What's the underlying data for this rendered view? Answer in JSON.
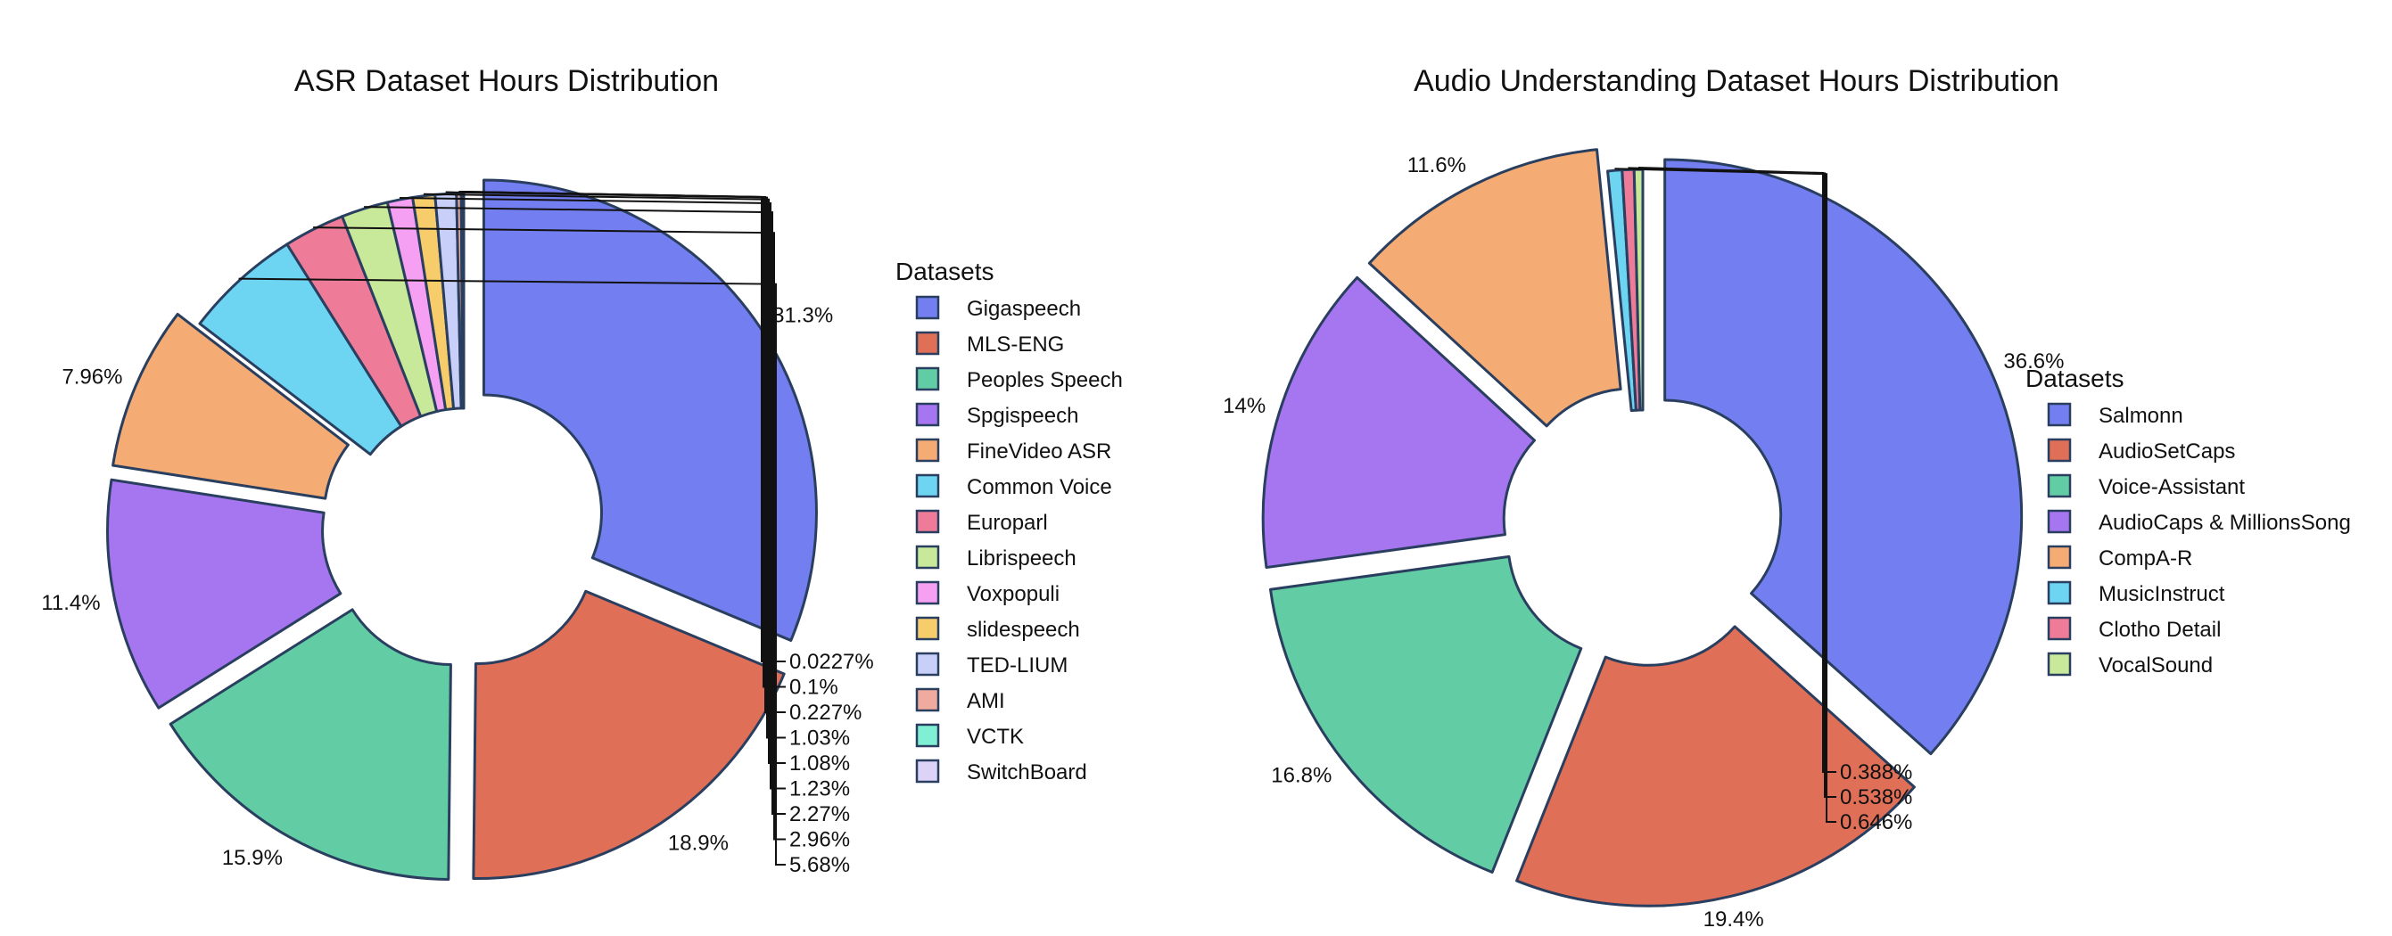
{
  "chart_data": [
    {
      "type": "pie",
      "title": "ASR Dataset Hours Distribution",
      "legend_title": "Datasets",
      "legend_position": "right",
      "hole": "donut",
      "labels": [
        "Gigaspeech",
        "MLS-ENG",
        "Peoples Speech",
        "Spgispeech",
        "FineVideo ASR",
        "Common Voice",
        "Europarl",
        "Librispeech",
        "Voxpopuli",
        "slidespeech",
        "TED-LIUM",
        "AMI",
        "VCTK",
        "SwitchBoard"
      ],
      "values": [
        31.3,
        18.9,
        15.9,
        11.4,
        7.96,
        5.68,
        2.96,
        2.27,
        1.23,
        1.08,
        1.03,
        0.227,
        0.1,
        0.0227
      ],
      "text": [
        "31.3%",
        "18.9%",
        "15.9%",
        "11.4%",
        "7.96%",
        "5.68%",
        "2.96%",
        "2.27%",
        "1.23%",
        "1.08%",
        "1.03%",
        "0.227%",
        "0.1%",
        "0.0227%"
      ],
      "colors": [
        "#737ef1",
        "#e06f58",
        "#62cda5",
        "#a675f0",
        "#f4ac74",
        "#6dd4f2",
        "#ee7b97",
        "#c8e99a",
        "#f6a0f3",
        "#f7cd6c",
        "#c8d0fa",
        "#efac9e",
        "#7ff0d3",
        "#dcd3f6"
      ]
    },
    {
      "type": "pie",
      "title": "Audio Understanding Dataset Hours Distribution",
      "legend_title": "Datasets",
      "legend_position": "right",
      "hole": "donut",
      "labels": [
        "Salmonn",
        "AudioSetCaps",
        "Voice-Assistant",
        "AudioCaps & MillionsSong",
        "CompA-R",
        "MusicInstruct",
        "Clotho Detail",
        "VocalSound"
      ],
      "values": [
        36.6,
        19.4,
        16.8,
        14,
        11.6,
        0.646,
        0.538,
        0.388
      ],
      "text": [
        "36.6%",
        "19.4%",
        "16.8%",
        "14%",
        "11.6%",
        "0.646%",
        "0.538%",
        "0.388%"
      ],
      "colors": [
        "#737ef1",
        "#e06f58",
        "#62cda5",
        "#a675f0",
        "#f4ac74",
        "#6dd4f2",
        "#ee7b97",
        "#c8e99a"
      ]
    }
  ]
}
